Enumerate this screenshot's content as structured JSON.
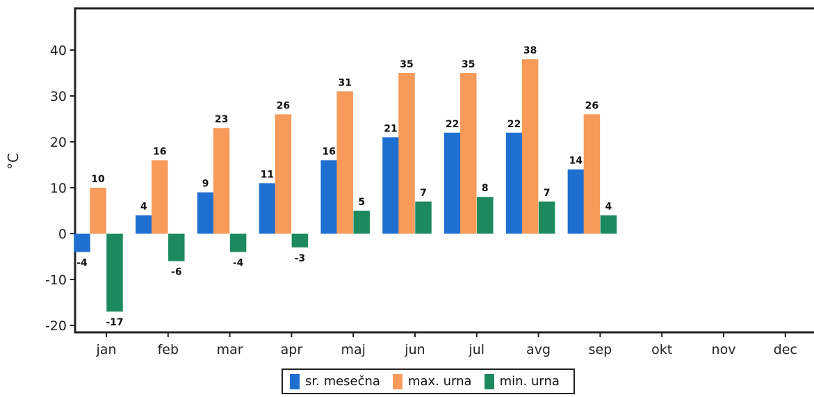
{
  "chart_data": {
    "type": "bar",
    "ylabel": "°C",
    "ylim": [
      -20,
      40
    ],
    "yticks": [
      40,
      30,
      20,
      10,
      0,
      -10,
      -20
    ],
    "categories": [
      "jan",
      "feb",
      "mar",
      "apr",
      "maj",
      "jun",
      "jul",
      "avg",
      "sep",
      "okt",
      "nov",
      "dec"
    ],
    "series": [
      {
        "name": "sr. mesečna",
        "color": "#1f6fd1",
        "values": [
          -4,
          4,
          9,
          11,
          16,
          21,
          22,
          22,
          14,
          null,
          null,
          null
        ]
      },
      {
        "name": "max. urna",
        "color": "#f79a5a",
        "values": [
          10,
          16,
          23,
          26,
          31,
          35,
          35,
          38,
          26,
          null,
          null,
          null
        ]
      },
      {
        "name": "min. urna",
        "color": "#1c8a5e",
        "values": [
          -17,
          -6,
          -4,
          -3,
          5,
          7,
          8,
          7,
          4,
          null,
          null,
          null
        ]
      }
    ],
    "legend_position": "bottom-center",
    "grid": false
  }
}
